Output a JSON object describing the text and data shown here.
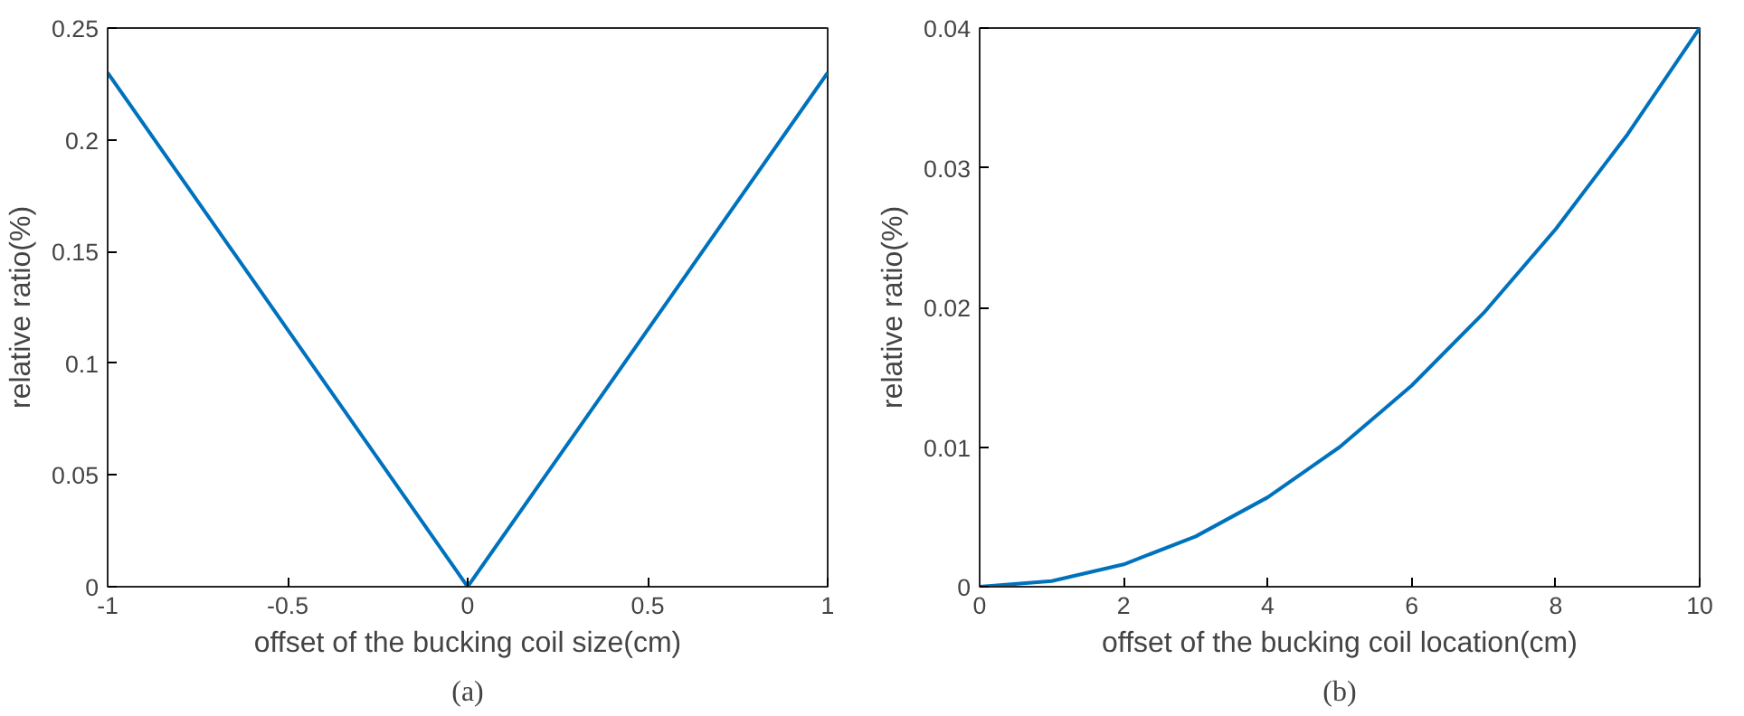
{
  "chart_data": [
    {
      "type": "line",
      "x": [
        -1,
        0,
        1
      ],
      "values": [
        0.23,
        0,
        0.23
      ],
      "color": "#0072bd",
      "xlabel": "offset of the bucking coil size(cm)",
      "ylabel": "relative ratio(%)",
      "xlim": [
        -1,
        1
      ],
      "ylim": [
        0,
        0.25
      ],
      "xticks": [
        {
          "value": -1,
          "label": "-1"
        },
        {
          "value": -0.5,
          "label": "-0.5"
        },
        0,
        0.5,
        1
      ],
      "yticks": [
        0,
        0.05,
        0.1,
        0.15,
        0.2,
        0.25
      ],
      "grid": false,
      "annotations": [
        "(a)"
      ]
    },
    {
      "type": "line",
      "x": [
        0,
        1,
        2,
        3,
        4,
        5,
        6,
        7,
        8,
        9,
        10
      ],
      "values": [
        0,
        0.0004,
        0.0016,
        0.0036,
        0.0064,
        0.01,
        0.0144,
        0.0196,
        0.0256,
        0.0324,
        0.04
      ],
      "color": "#0072bd",
      "xlabel": "offset of the bucking coil location(cm)",
      "ylabel": "relative ratio(%)",
      "xlim": [
        0,
        10
      ],
      "ylim": [
        0,
        0.04
      ],
      "xticks": [
        0,
        2,
        4,
        6,
        8,
        10
      ],
      "yticks": [
        0,
        0.01,
        0.02,
        0.03,
        0.04
      ],
      "grid": false,
      "annotations": [
        "(b)"
      ]
    }
  ]
}
